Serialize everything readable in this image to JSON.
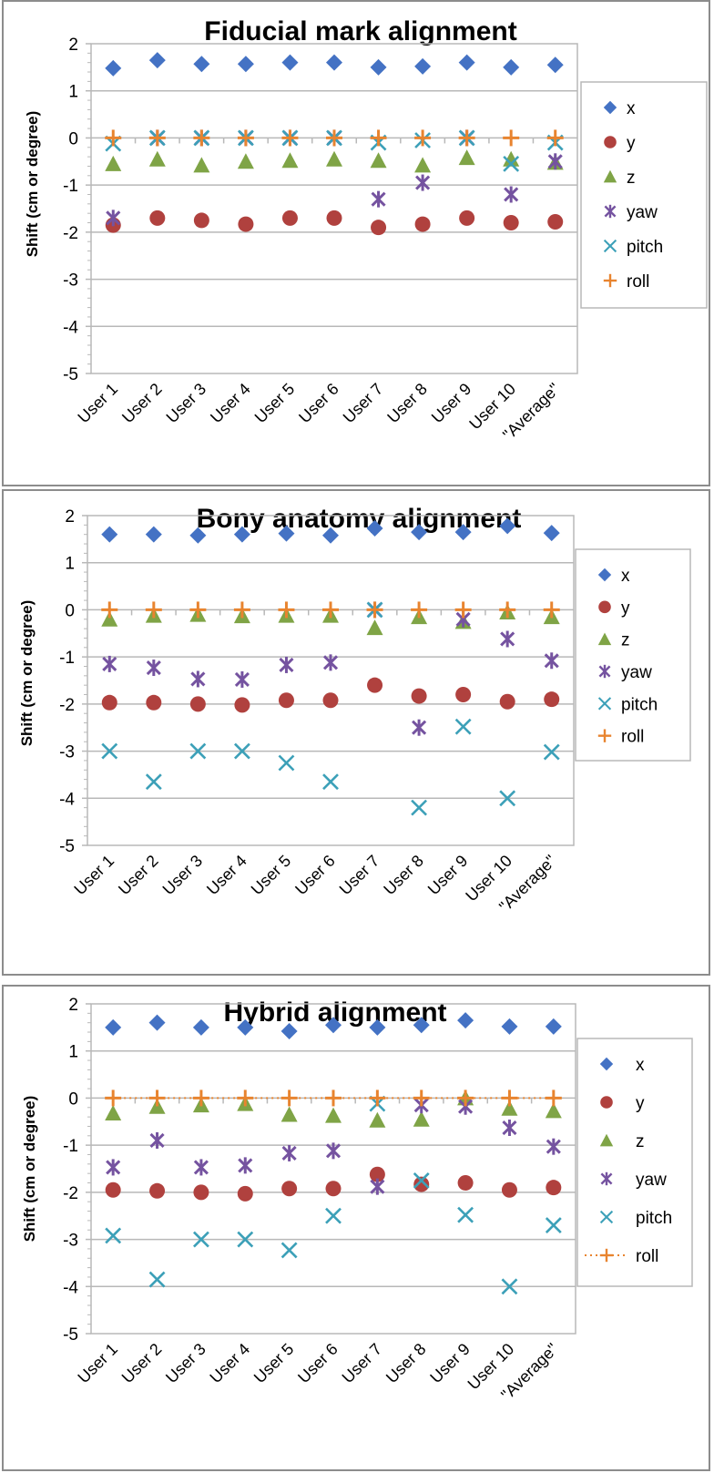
{
  "chart_data": [
    {
      "type": "scatter",
      "title": "Fiducial mark alignment",
      "xlabel": "",
      "ylabel": "Shift (cm or degree)",
      "ylim": [
        -5,
        2
      ],
      "yticks": [
        "2",
        "1",
        "0",
        "-1",
        "-2",
        "-3",
        "-4",
        "-5"
      ],
      "grid": true,
      "legend": "right",
      "roll_style": "markers",
      "categories": [
        "User 1",
        "User 2",
        "User 3",
        "User 4",
        "User 5",
        "User 6",
        "User 7",
        "User 8",
        "User 9",
        "User 10",
        "\"Average\""
      ],
      "series": [
        {
          "name": "x",
          "marker": "diamond",
          "color": "#4472C4",
          "values": [
            1.48,
            1.65,
            1.57,
            1.57,
            1.6,
            1.6,
            1.5,
            1.52,
            1.6,
            1.5,
            1.55
          ]
        },
        {
          "name": "y",
          "marker": "circle",
          "color": "#B0413E",
          "values": [
            -1.85,
            -1.7,
            -1.75,
            -1.83,
            -1.7,
            -1.7,
            -1.9,
            -1.83,
            -1.7,
            -1.8,
            -1.78
          ]
        },
        {
          "name": "z",
          "marker": "triangle",
          "color": "#7FA446",
          "values": [
            -0.55,
            -0.45,
            -0.58,
            -0.5,
            -0.48,
            -0.45,
            -0.48,
            -0.58,
            -0.42,
            -0.45,
            -0.52
          ]
        },
        {
          "name": "yaw",
          "marker": "asterisk",
          "color": "#7553A0",
          "values": [
            -1.7,
            0,
            0,
            0,
            0,
            0,
            -1.3,
            -0.95,
            0,
            -1.2,
            -0.5
          ]
        },
        {
          "name": "pitch",
          "marker": "x",
          "color": "#3CA0B8",
          "values": [
            -0.12,
            0,
            0,
            0,
            0,
            0,
            -0.1,
            -0.05,
            0,
            -0.55,
            -0.1
          ]
        },
        {
          "name": "roll",
          "marker": "plus",
          "color": "#E8842F",
          "values": [
            0,
            0,
            0,
            0,
            0,
            0,
            0,
            0,
            0,
            0,
            0
          ]
        }
      ]
    },
    {
      "type": "scatter",
      "title": "Bony anatomy alignment",
      "xlabel": "",
      "ylabel": "Shift (cm or degree)",
      "ylim": [
        -5,
        2
      ],
      "yticks": [
        "2",
        "1",
        "0",
        "-1",
        "-2",
        "-3",
        "-4",
        "-5"
      ],
      "grid": true,
      "legend": "right",
      "roll_style": "markers",
      "categories": [
        "User 1",
        "User 2",
        "User 3",
        "User 4",
        "User 5",
        "User 6",
        "User 7",
        "User 8",
        "User 9",
        "User 10",
        "\"Average\""
      ],
      "series": [
        {
          "name": "x",
          "marker": "diamond",
          "color": "#4472C4",
          "values": [
            1.6,
            1.6,
            1.58,
            1.6,
            1.62,
            1.58,
            1.73,
            1.65,
            1.65,
            1.78,
            1.63
          ]
        },
        {
          "name": "y",
          "marker": "circle",
          "color": "#B0413E",
          "values": [
            -1.97,
            -1.97,
            -2.0,
            -2.02,
            -1.92,
            -1.92,
            -1.6,
            -1.83,
            -1.8,
            -1.95,
            -1.9
          ]
        },
        {
          "name": "z",
          "marker": "triangle",
          "color": "#7FA446",
          "values": [
            -0.2,
            -0.12,
            -0.1,
            -0.13,
            -0.12,
            -0.12,
            -0.38,
            -0.15,
            -0.25,
            -0.05,
            -0.15
          ]
        },
        {
          "name": "yaw",
          "marker": "asterisk",
          "color": "#7553A0",
          "values": [
            -1.15,
            -1.23,
            -1.47,
            -1.48,
            -1.17,
            -1.12,
            0,
            -2.5,
            -0.2,
            -0.62,
            -1.08
          ]
        },
        {
          "name": "pitch",
          "marker": "x",
          "color": "#3CA0B8",
          "values": [
            -3.0,
            -3.65,
            -3.0,
            -3.0,
            -3.25,
            -3.65,
            0,
            -4.2,
            -2.48,
            -4.0,
            -3.02
          ]
        },
        {
          "name": "roll",
          "marker": "plus",
          "color": "#E8842F",
          "values": [
            0,
            0,
            0,
            0,
            0,
            0,
            0,
            0,
            0,
            0,
            0
          ]
        }
      ]
    },
    {
      "type": "scatter",
      "title": "Hybrid alignment",
      "xlabel": "",
      "ylabel": "Shift (cm or degree)",
      "ylim": [
        -5,
        2
      ],
      "yticks": [
        "2",
        "1",
        "0",
        "-1",
        "-2",
        "-3",
        "-4",
        "-5"
      ],
      "grid": true,
      "legend": "right",
      "roll_style": "dotted-line",
      "categories": [
        "User 1",
        "User 2",
        "User 3",
        "User 4",
        "User 5",
        "User 6",
        "User 7",
        "User 8",
        "User 9",
        "User 10",
        "\"Average\""
      ],
      "series": [
        {
          "name": "x",
          "marker": "diamond",
          "color": "#4472C4",
          "values": [
            1.5,
            1.6,
            1.5,
            1.5,
            1.42,
            1.55,
            1.5,
            1.55,
            1.65,
            1.52,
            1.52
          ]
        },
        {
          "name": "y",
          "marker": "circle",
          "color": "#B0413E",
          "values": [
            -1.95,
            -1.97,
            -2.0,
            -2.03,
            -1.92,
            -1.92,
            -1.62,
            -1.83,
            -1.8,
            -1.95,
            -1.9
          ]
        },
        {
          "name": "z",
          "marker": "triangle",
          "color": "#7FA446",
          "values": [
            -0.32,
            -0.18,
            -0.15,
            -0.12,
            -0.35,
            -0.37,
            -0.47,
            -0.45,
            0,
            -0.22,
            -0.27
          ]
        },
        {
          "name": "yaw",
          "marker": "asterisk",
          "color": "#7553A0",
          "values": [
            -1.47,
            -0.9,
            -1.47,
            -1.43,
            -1.17,
            -1.12,
            -1.88,
            -0.15,
            -0.18,
            -0.63,
            -1.03
          ]
        },
        {
          "name": "pitch",
          "marker": "x",
          "color": "#3CA0B8",
          "values": [
            -2.92,
            -3.85,
            -3.0,
            -3.0,
            -3.23,
            -2.5,
            -0.12,
            -1.75,
            -2.48,
            -4.0,
            -2.7
          ]
        },
        {
          "name": "roll",
          "marker": "plus",
          "color": "#E8842F",
          "values": [
            0,
            0,
            0,
            0,
            0,
            0,
            0,
            0,
            0,
            0,
            0
          ]
        }
      ]
    }
  ]
}
